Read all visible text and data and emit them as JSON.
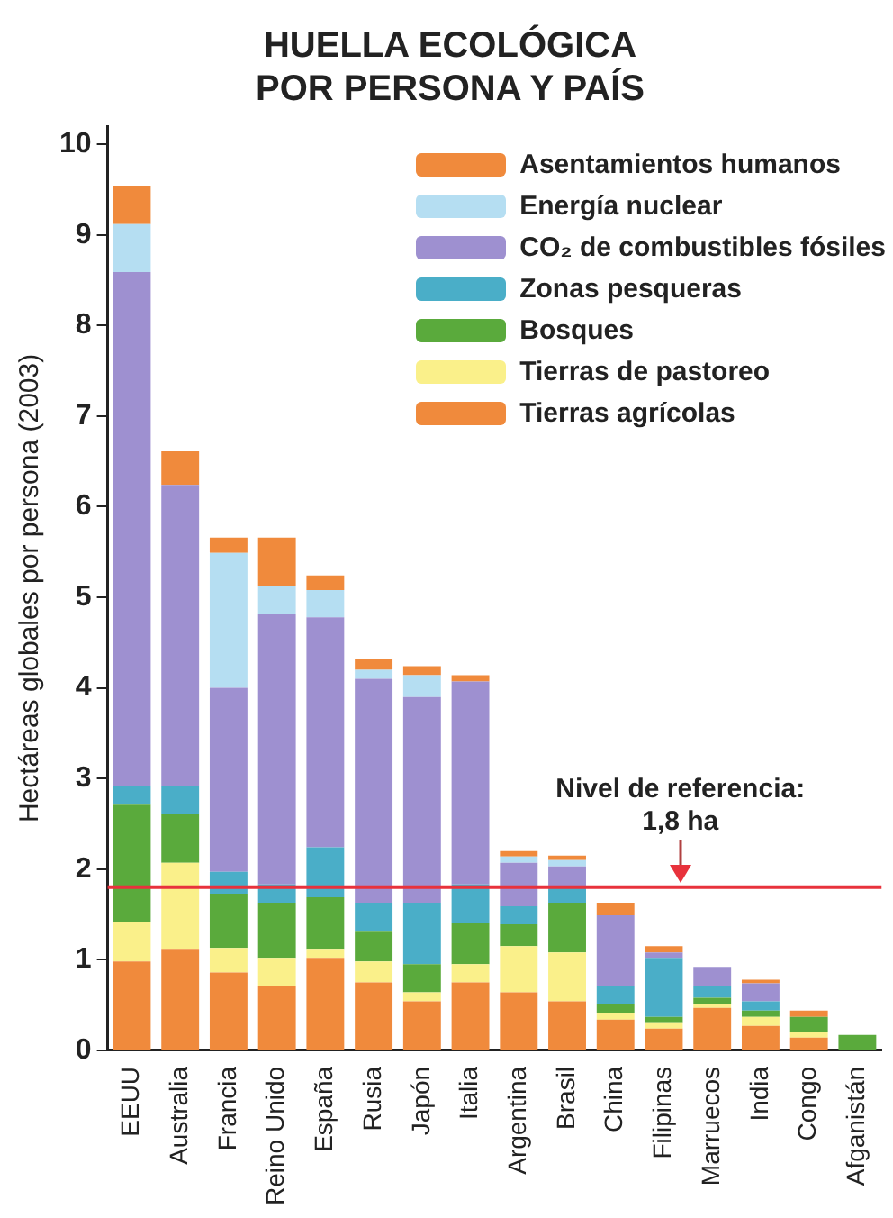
{
  "chart_data": {
    "type": "bar",
    "title": "HUELLA ECOLÓGICA\nPOR PERSONA Y PAÍS",
    "ylabel": "Hectáreas globales por persona (2003)",
    "categories": [
      "EEUU",
      "Australia",
      "Francia",
      "Reino Unido",
      "España",
      "Rusia",
      "Japón",
      "Italia",
      "Argentina",
      "Brasil",
      "China",
      "Filipinas",
      "Marruecos",
      "India",
      "Congo",
      "Afganistán"
    ],
    "stacked": true,
    "ylim": [
      0,
      10.2
    ],
    "yticks": [
      0,
      1,
      2,
      3,
      4,
      5,
      6,
      7,
      8,
      9,
      10
    ],
    "grid": false,
    "legend": "top right",
    "series": [
      {
        "name": "Tierras agrícolas",
        "color": "#f08a3c",
        "values": [
          0.98,
          1.12,
          0.86,
          0.71,
          1.02,
          0.75,
          0.54,
          0.75,
          0.64,
          0.54,
          0.34,
          0.24,
          0.47,
          0.27,
          0.14,
          0
        ]
      },
      {
        "name": "Tierras de pastoreo",
        "color": "#faf08a",
        "values": [
          0.44,
          0.95,
          0.27,
          0.31,
          0.1,
          0.23,
          0.1,
          0.2,
          0.51,
          0.54,
          0.07,
          0.07,
          0.04,
          0.1,
          0.06,
          0
        ]
      },
      {
        "name": "Bosques",
        "color": "#5aaa3c",
        "values": [
          1.29,
          0.54,
          0.6,
          0.61,
          0.57,
          0.34,
          0.31,
          0.45,
          0.24,
          0.55,
          0.1,
          0.06,
          0.07,
          0.07,
          0.17,
          0.17
        ]
      },
      {
        "name": "Zonas pesqueras",
        "color": "#4aaec8",
        "values": [
          0.21,
          0.31,
          0.24,
          0.2,
          0.55,
          0.31,
          0.68,
          0.43,
          0.2,
          0.17,
          0.2,
          0.65,
          0.13,
          0.1,
          0,
          0
        ]
      },
      {
        "name": "CO₂ de combustibles fósiles",
        "color": "#9e90d0",
        "values": [
          5.67,
          3.32,
          2.03,
          2.98,
          2.54,
          2.47,
          2.27,
          2.24,
          0.48,
          0.23,
          0.78,
          0.06,
          0.21,
          0.2,
          0,
          0
        ]
      },
      {
        "name": "Energía nuclear",
        "color": "#b5def2",
        "values": [
          0.53,
          0,
          1.49,
          0.31,
          0.3,
          0.1,
          0.24,
          0,
          0.07,
          0.07,
          0,
          0,
          0,
          0,
          0,
          0
        ]
      },
      {
        "name": "Asentamientos humanos",
        "color": "#f08a3c",
        "values": [
          0.42,
          0.37,
          0.17,
          0.54,
          0.16,
          0.12,
          0.1,
          0.07,
          0.06,
          0.05,
          0.14,
          0.07,
          0,
          0.04,
          0.07,
          0
        ]
      }
    ],
    "ref_lines": [
      {
        "axis": "y",
        "value": 1.8,
        "label": "Nivel de referencia:\n1,8 ha",
        "color": "#e8323c"
      }
    ]
  }
}
